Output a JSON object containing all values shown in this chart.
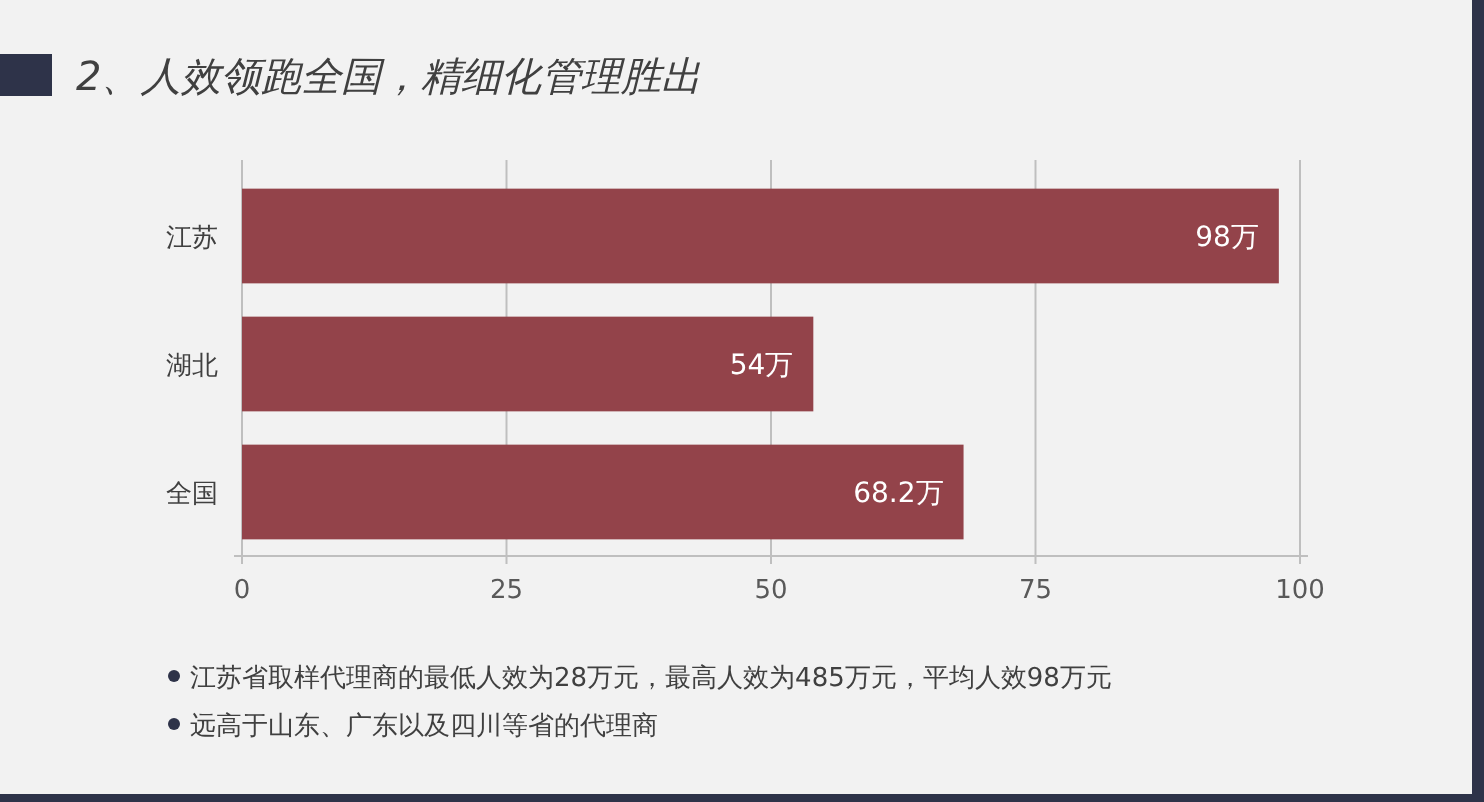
{
  "chart_data": {
    "type": "bar",
    "orientation": "horizontal",
    "title": "2、人效领跑全国，精细化管理胜出",
    "categories": [
      "江苏",
      "湖北",
      "全国"
    ],
    "values": [
      98,
      54,
      68.2
    ],
    "value_labels": [
      "98万",
      "54万",
      "68.2万"
    ],
    "color": "#93434a",
    "xlim": [
      0,
      100
    ],
    "xticks": [
      0,
      25,
      50,
      75,
      100
    ],
    "grid": "x",
    "annotations": [
      "江苏省取样代理商的最低人效为28万元，最高人效为485万元，平均人效98万元",
      "远高于山东、广东以及四川等省的代理商"
    ]
  }
}
